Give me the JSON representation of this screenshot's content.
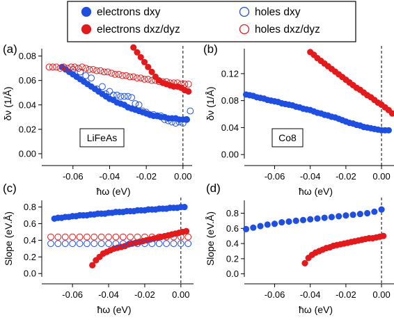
{
  "legend": [
    {
      "label": "electrons dxy",
      "color": "#1f4fe0",
      "filled": true
    },
    {
      "label": "electrons dxz/dyz",
      "color": "#e31a1c",
      "filled": true
    },
    {
      "label": "holes dxy",
      "color": "#1f4fe0",
      "filled": false
    },
    {
      "label": "holes dxz/dyz",
      "color": "#e31a1c",
      "filled": false
    }
  ],
  "chart_data": [
    {
      "panel": "(a)",
      "type": "scatter",
      "box_label": "LiFeAs",
      "xlabel": "ħω (eV)",
      "ylabel": "δν (1/Å)",
      "xlim": [
        -0.077,
        0.005
      ],
      "ylim": [
        -0.004,
        0.086
      ],
      "xticks": [
        -0.06,
        -0.04,
        -0.02,
        0.0
      ],
      "xticklabels": [
        "-0.06",
        "-0.04",
        "-0.02",
        "0.00"
      ],
      "yticks": [
        0.0,
        0.02,
        0.04,
        0.06,
        0.08
      ],
      "yticklabels": [
        "0.00",
        "0.02",
        "0.04",
        "0.06",
        "0.08"
      ],
      "vline": 0,
      "series": [
        {
          "legend_index": 0,
          "x": [
            -0.066,
            -0.064,
            -0.062,
            -0.06,
            -0.058,
            -0.056,
            -0.054,
            -0.052,
            -0.05,
            -0.048,
            -0.046,
            -0.044,
            -0.042,
            -0.04,
            -0.038,
            -0.036,
            -0.034,
            -0.032,
            -0.03,
            -0.028,
            -0.026,
            -0.024,
            -0.022,
            -0.02,
            -0.018,
            -0.016,
            -0.014,
            -0.012,
            -0.01,
            -0.008,
            -0.006,
            -0.004,
            -0.002,
            0.0,
            0.002
          ],
          "y": [
            0.071,
            0.069,
            0.067,
            0.065,
            0.063,
            0.061,
            0.059,
            0.057,
            0.055,
            0.053,
            0.051,
            0.049,
            0.047,
            0.045,
            0.044,
            0.042,
            0.041,
            0.04,
            0.038,
            0.037,
            0.036,
            0.035,
            0.034,
            0.033,
            0.032,
            0.031,
            0.031,
            0.03,
            0.03,
            0.029,
            0.029,
            0.029,
            0.028,
            0.028,
            0.028
          ]
        },
        {
          "legend_index": 1,
          "x": [
            -0.027,
            -0.025,
            -0.023,
            -0.021,
            -0.019,
            -0.017,
            -0.015,
            -0.013,
            -0.011,
            -0.009,
            -0.007,
            -0.005,
            -0.003,
            -0.001,
            0.001,
            0.003
          ],
          "y": [
            0.087,
            0.083,
            0.079,
            0.075,
            0.071,
            0.067,
            0.063,
            0.06,
            0.058,
            0.057,
            0.056,
            0.055,
            0.055,
            0.054,
            0.052,
            0.051
          ]
        },
        {
          "legend_index": 2,
          "x": [
            -0.06,
            -0.056,
            -0.053,
            -0.05,
            -0.047,
            -0.044,
            -0.042,
            -0.04,
            -0.038,
            -0.036,
            -0.034,
            -0.032,
            -0.03,
            -0.028,
            -0.026,
            -0.024,
            -0.022,
            -0.02,
            -0.018,
            -0.016,
            -0.014,
            -0.012,
            -0.01,
            -0.008,
            -0.006,
            -0.004,
            -0.002,
            0.0,
            0.002,
            0.004
          ],
          "y": [
            0.069,
            0.067,
            0.064,
            0.062,
            0.053,
            0.055,
            0.049,
            0.051,
            0.048,
            0.048,
            0.047,
            0.047,
            0.047,
            0.046,
            0.041,
            0.04,
            0.035,
            0.034,
            0.032,
            0.032,
            0.031,
            0.031,
            0.028,
            0.027,
            0.026,
            0.025,
            0.026,
            0.025,
            0.028,
            0.035
          ]
        },
        {
          "legend_index": 3,
          "x": [
            -0.073,
            -0.071,
            -0.069,
            -0.067,
            -0.065,
            -0.063,
            -0.061,
            -0.059,
            -0.057,
            -0.055,
            -0.053,
            -0.051,
            -0.049,
            -0.047,
            -0.045,
            -0.043,
            -0.041,
            -0.039,
            -0.037,
            -0.035,
            -0.033,
            -0.031,
            -0.029,
            -0.027,
            -0.025,
            -0.023,
            -0.021,
            -0.019,
            -0.017,
            -0.015,
            -0.013,
            -0.011,
            -0.009,
            -0.007,
            -0.005,
            -0.003,
            -0.001,
            0.001,
            0.003
          ],
          "y": [
            0.071,
            0.071,
            0.071,
            0.07,
            0.071,
            0.07,
            0.071,
            0.071,
            0.07,
            0.071,
            0.07,
            0.069,
            0.069,
            0.068,
            0.068,
            0.067,
            0.067,
            0.066,
            0.065,
            0.065,
            0.064,
            0.064,
            0.063,
            0.063,
            0.062,
            0.062,
            0.061,
            0.061,
            0.06,
            0.06,
            0.059,
            0.059,
            0.059,
            0.058,
            0.058,
            0.058,
            0.057,
            0.057,
            0.057
          ]
        }
      ]
    },
    {
      "panel": "(b)",
      "type": "scatter",
      "box_label": "Co8",
      "xlabel": "ħω (eV)",
      "ylabel": "δν (1/Å)",
      "xlim": [
        -0.077,
        0.007
      ],
      "ylim": [
        -0.006,
        0.157
      ],
      "xticks": [
        -0.06,
        -0.04,
        -0.02,
        0.0
      ],
      "xticklabels": [
        "-0.06",
        "-0.04",
        "-0.02",
        "0.00"
      ],
      "yticks": [
        0.0,
        0.04,
        0.08,
        0.12
      ],
      "yticklabels": [
        "0.00",
        "0.04",
        "0.08",
        "0.12"
      ],
      "vline": 0,
      "series": [
        {
          "legend_index": 0,
          "x": [
            -0.076,
            -0.074,
            -0.072,
            -0.07,
            -0.068,
            -0.066,
            -0.064,
            -0.062,
            -0.06,
            -0.058,
            -0.056,
            -0.054,
            -0.052,
            -0.05,
            -0.048,
            -0.046,
            -0.044,
            -0.042,
            -0.04,
            -0.038,
            -0.036,
            -0.034,
            -0.032,
            -0.03,
            -0.028,
            -0.026,
            -0.024,
            -0.022,
            -0.02,
            -0.018,
            -0.016,
            -0.014,
            -0.012,
            -0.01,
            -0.008,
            -0.006,
            -0.004,
            -0.002,
            0.0,
            0.002,
            0.004
          ],
          "y": [
            0.089,
            0.088,
            0.087,
            0.085,
            0.084,
            0.083,
            0.081,
            0.08,
            0.079,
            0.078,
            0.076,
            0.075,
            0.074,
            0.073,
            0.071,
            0.07,
            0.068,
            0.067,
            0.066,
            0.064,
            0.062,
            0.061,
            0.059,
            0.058,
            0.056,
            0.055,
            0.053,
            0.051,
            0.049,
            0.047,
            0.046,
            0.044,
            0.043,
            0.041,
            0.04,
            0.039,
            0.038,
            0.037,
            0.036,
            0.036,
            0.036
          ]
        },
        {
          "legend_index": 1,
          "x": [
            -0.04,
            -0.038,
            -0.036,
            -0.034,
            -0.032,
            -0.03,
            -0.028,
            -0.026,
            -0.024,
            -0.022,
            -0.02,
            -0.018,
            -0.016,
            -0.014,
            -0.012,
            -0.01,
            -0.008,
            -0.006,
            -0.004,
            -0.002,
            0.0,
            0.002,
            0.004,
            0.006
          ],
          "y": [
            0.152,
            0.148,
            0.143,
            0.139,
            0.135,
            0.131,
            0.127,
            0.123,
            0.119,
            0.115,
            0.111,
            0.107,
            0.103,
            0.099,
            0.096,
            0.092,
            0.088,
            0.085,
            0.081,
            0.077,
            0.074,
            0.07,
            0.066,
            0.061
          ]
        }
      ]
    },
    {
      "panel": "(c)",
      "type": "scatter",
      "xlabel": "ħω (eV)",
      "ylabel": "Slope (eV.Å)",
      "xlim": [
        -0.077,
        0.007
      ],
      "ylim": [
        -0.04,
        0.88
      ],
      "xticks": [
        -0.06,
        -0.04,
        -0.02,
        0.0
      ],
      "xticklabels": [
        "-0.06",
        "-0.04",
        "-0.02",
        "0.00"
      ],
      "yticks": [
        0.0,
        0.2,
        0.4,
        0.6,
        0.8
      ],
      "yticklabels": [
        "0.0",
        "0.2",
        "0.4",
        "0.6",
        "0.8"
      ],
      "vline": 0,
      "series": [
        {
          "legend_index": 0,
          "x": [
            -0.07,
            -0.068,
            -0.066,
            -0.064,
            -0.062,
            -0.06,
            -0.058,
            -0.056,
            -0.054,
            -0.052,
            -0.05,
            -0.048,
            -0.046,
            -0.044,
            -0.042,
            -0.04,
            -0.038,
            -0.036,
            -0.034,
            -0.032,
            -0.03,
            -0.028,
            -0.026,
            -0.024,
            -0.022,
            -0.02,
            -0.018,
            -0.016,
            -0.014,
            -0.012,
            -0.01,
            -0.008,
            -0.006,
            -0.004,
            -0.002,
            0.0,
            0.002
          ],
          "y": [
            0.66,
            0.67,
            0.67,
            0.68,
            0.68,
            0.69,
            0.69,
            0.7,
            0.7,
            0.7,
            0.71,
            0.71,
            0.72,
            0.72,
            0.72,
            0.73,
            0.73,
            0.74,
            0.74,
            0.74,
            0.75,
            0.75,
            0.75,
            0.76,
            0.76,
            0.76,
            0.77,
            0.77,
            0.77,
            0.78,
            0.78,
            0.78,
            0.79,
            0.79,
            0.79,
            0.8,
            0.8
          ]
        },
        {
          "legend_index": 1,
          "x": [
            -0.049,
            -0.047,
            -0.045,
            -0.043,
            -0.041,
            -0.039,
            -0.037,
            -0.035,
            -0.033,
            -0.031,
            -0.029,
            -0.027,
            -0.025,
            -0.023,
            -0.021,
            -0.019,
            -0.017,
            -0.015,
            -0.013,
            -0.011,
            -0.009,
            -0.007,
            -0.005,
            -0.003,
            -0.001,
            0.001,
            0.003
          ],
          "y": [
            0.1,
            0.16,
            0.2,
            0.24,
            0.26,
            0.28,
            0.3,
            0.31,
            0.32,
            0.33,
            0.35,
            0.36,
            0.37,
            0.38,
            0.39,
            0.4,
            0.41,
            0.42,
            0.43,
            0.44,
            0.45,
            0.46,
            0.47,
            0.48,
            0.49,
            0.5,
            0.51
          ]
        },
        {
          "legend_index": 2,
          "x": [
            -0.072,
            -0.068,
            -0.064,
            -0.06,
            -0.056,
            -0.052,
            -0.048,
            -0.044,
            -0.04,
            -0.036,
            -0.032,
            -0.028,
            -0.024,
            -0.02,
            -0.016,
            -0.012,
            -0.008,
            -0.004,
            0.0,
            0.004
          ],
          "y": [
            0.36,
            0.36,
            0.36,
            0.36,
            0.36,
            0.36,
            0.36,
            0.36,
            0.36,
            0.36,
            0.36,
            0.36,
            0.36,
            0.36,
            0.36,
            0.36,
            0.36,
            0.36,
            0.36,
            0.36
          ]
        },
        {
          "legend_index": 3,
          "x": [
            -0.072,
            -0.068,
            -0.064,
            -0.06,
            -0.056,
            -0.052,
            -0.048,
            -0.044,
            -0.04,
            -0.036,
            -0.032,
            -0.028,
            -0.024,
            -0.02,
            -0.016,
            -0.012,
            -0.008,
            -0.004,
            0.0,
            0.004
          ],
          "y": [
            0.44,
            0.44,
            0.44,
            0.44,
            0.44,
            0.44,
            0.44,
            0.44,
            0.44,
            0.44,
            0.44,
            0.44,
            0.44,
            0.44,
            0.44,
            0.44,
            0.44,
            0.44,
            0.44,
            0.44
          ]
        }
      ]
    },
    {
      "panel": "(d)",
      "type": "scatter",
      "xlabel": "ħω (eV)",
      "ylabel": "Slope (eV.Å)",
      "xlim": [
        -0.077,
        0.007
      ],
      "ylim": [
        -0.04,
        0.97
      ],
      "xticks": [
        -0.06,
        -0.04,
        -0.02,
        0.0
      ],
      "xticklabels": [
        "-0.06",
        "-0.04",
        "-0.02",
        "0.00"
      ],
      "yticks": [
        0.0,
        0.2,
        0.4,
        0.6,
        0.8
      ],
      "yticklabels": [
        "0.0",
        "0.2",
        "0.4",
        "0.6",
        "0.8"
      ],
      "vline": 0,
      "series": [
        {
          "legend_index": 0,
          "x": [
            -0.076,
            -0.072,
            -0.068,
            -0.064,
            -0.06,
            -0.056,
            -0.052,
            -0.048,
            -0.044,
            -0.04,
            -0.036,
            -0.032,
            -0.028,
            -0.024,
            -0.02,
            -0.016,
            -0.012,
            -0.008,
            -0.004,
            0.0
          ],
          "y": [
            0.59,
            0.61,
            0.63,
            0.65,
            0.66,
            0.68,
            0.69,
            0.7,
            0.71,
            0.72,
            0.73,
            0.74,
            0.75,
            0.76,
            0.77,
            0.78,
            0.79,
            0.8,
            0.82,
            0.85
          ]
        },
        {
          "legend_index": 1,
          "x": [
            -0.043,
            -0.041,
            -0.039,
            -0.037,
            -0.035,
            -0.033,
            -0.031,
            -0.029,
            -0.027,
            -0.025,
            -0.023,
            -0.021,
            -0.019,
            -0.017,
            -0.015,
            -0.013,
            -0.011,
            -0.009,
            -0.007,
            -0.005,
            -0.003,
            -0.001,
            0.001
          ],
          "y": [
            0.14,
            0.21,
            0.25,
            0.28,
            0.3,
            0.32,
            0.34,
            0.35,
            0.37,
            0.38,
            0.39,
            0.4,
            0.41,
            0.42,
            0.43,
            0.44,
            0.45,
            0.46,
            0.47,
            0.47,
            0.48,
            0.49,
            0.5
          ]
        }
      ]
    }
  ]
}
